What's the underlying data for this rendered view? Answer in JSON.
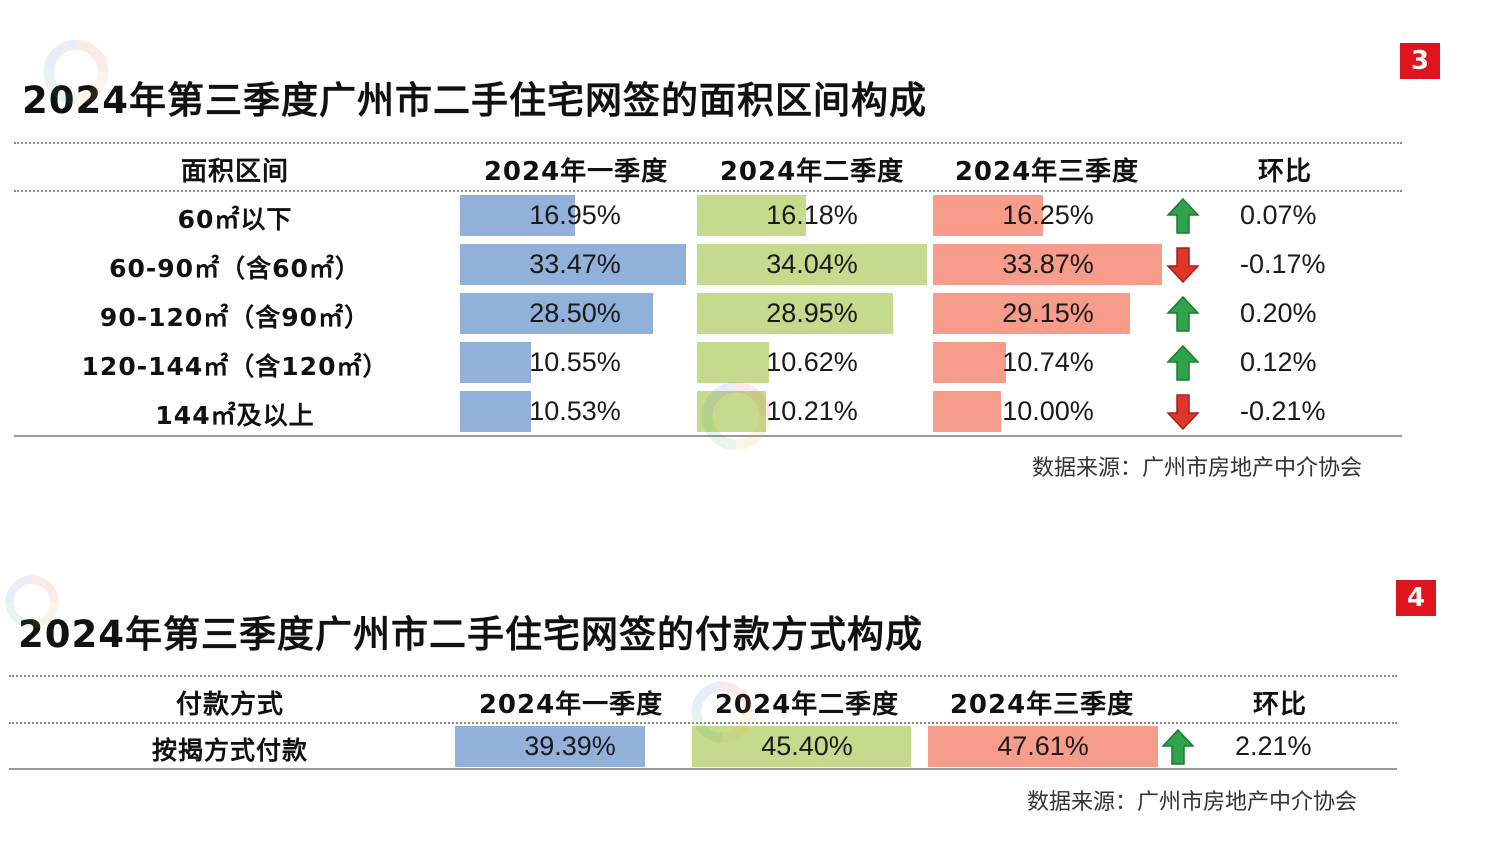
{
  "colors": {
    "q1": "#91b1db",
    "q2": "#c5da8c",
    "q3": "#f79b8a",
    "q1_max": "#8cb0dc",
    "up": "#2fa24a",
    "down": "#e0352b",
    "badge": "#e0141e"
  },
  "watermark_icon": "association-logo-watermark",
  "chart_data": [
    {
      "type": "table",
      "badge": "3",
      "title": "2024年第三季度广州市二手住宅网签的面积区间构成",
      "columns": [
        "面积区间",
        "2024年一季度",
        "2024年二季度",
        "2024年三季度",
        "环比"
      ],
      "series": [
        {
          "name": "2024年一季度",
          "values": [
            16.95,
            33.47,
            28.5,
            10.55,
            10.53
          ]
        },
        {
          "name": "2024年二季度",
          "values": [
            16.18,
            34.04,
            28.95,
            10.62,
            10.21
          ]
        },
        {
          "name": "2024年三季度",
          "values": [
            16.25,
            33.87,
            29.15,
            10.74,
            10.0
          ]
        }
      ],
      "rows": [
        {
          "label": "60㎡以下",
          "q1": "16.95%",
          "q2": "16.18%",
          "q3": "16.25%",
          "change": "0.07%",
          "direction": "up"
        },
        {
          "label": "60-90㎡（含60㎡）",
          "q1": "33.47%",
          "q2": "34.04%",
          "q3": "33.87%",
          "change": "-0.17%",
          "direction": "down"
        },
        {
          "label": "90-120㎡（含90㎡）",
          "q1": "28.50%",
          "q2": "28.95%",
          "q3": "29.15%",
          "change": "0.20%",
          "direction": "up"
        },
        {
          "label": "120-144㎡（含120㎡）",
          "q1": "10.55%",
          "q2": "10.62%",
          "q3": "10.74%",
          "change": "0.12%",
          "direction": "up"
        },
        {
          "label": "144㎡及以上",
          "q1": "10.53%",
          "q2": "10.21%",
          "q3": "10.00%",
          "change": "-0.21%",
          "direction": "down"
        }
      ],
      "source": "数据来源：广州市房地产中介协会"
    },
    {
      "type": "table",
      "badge": "4",
      "title": "2024年第三季度广州市二手住宅网签的付款方式构成",
      "columns": [
        "付款方式",
        "2024年一季度",
        "2024年二季度",
        "2024年三季度",
        "环比"
      ],
      "series": [
        {
          "name": "2024年一季度",
          "values": [
            39.39
          ]
        },
        {
          "name": "2024年二季度",
          "values": [
            45.4
          ]
        },
        {
          "name": "2024年三季度",
          "values": [
            47.61
          ]
        }
      ],
      "rows": [
        {
          "label": "按揭方式付款",
          "q1": "39.39%",
          "q2": "45.40%",
          "q3": "47.61%",
          "change": "2.21%",
          "direction": "up"
        }
      ],
      "source": "数据来源：广州市房地产中介协会"
    }
  ]
}
